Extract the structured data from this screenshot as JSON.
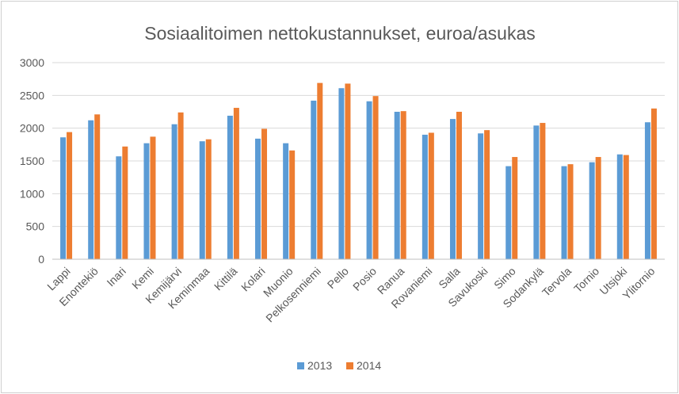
{
  "chart_data": {
    "type": "bar",
    "title": "Sosiaalitoimen nettokustannukset, euroa/asukas",
    "xlabel": "",
    "ylabel": "",
    "ylim": [
      0,
      3000
    ],
    "yticks": [
      "0",
      "500",
      "1000",
      "1500",
      "2000",
      "2500",
      "3000"
    ],
    "grid": true,
    "legend_position": "bottom",
    "categories": [
      "Lappi",
      "Enontekiö",
      "Inari",
      "Kemi",
      "Kemijärvi",
      "Keminmaa",
      "Kittilä",
      "Kolari",
      "Muonio",
      "Pelkosenniemi",
      "Pello",
      "Posio",
      "Ranua",
      "Rovaniemi",
      "Salla",
      "Savukoski",
      "Simo",
      "Sodankylä",
      "Tervola",
      "Tornio",
      "Utsjoki",
      "Ylitornio"
    ],
    "series": [
      {
        "name": "2013",
        "color": "#5b9bd5",
        "values": [
          1860,
          2120,
          1570,
          1770,
          2060,
          1800,
          2190,
          1840,
          1770,
          2420,
          2610,
          2410,
          2250,
          1900,
          2140,
          1920,
          1420,
          2040,
          1420,
          1480,
          1600,
          2090
        ]
      },
      {
        "name": "2014",
        "color": "#ed7d31",
        "values": [
          1940,
          2210,
          1720,
          1870,
          2240,
          1830,
          2310,
          1990,
          1660,
          2690,
          2680,
          2490,
          2260,
          1930,
          2250,
          1970,
          1560,
          2080,
          1450,
          1560,
          1590,
          2300
        ]
      }
    ]
  }
}
